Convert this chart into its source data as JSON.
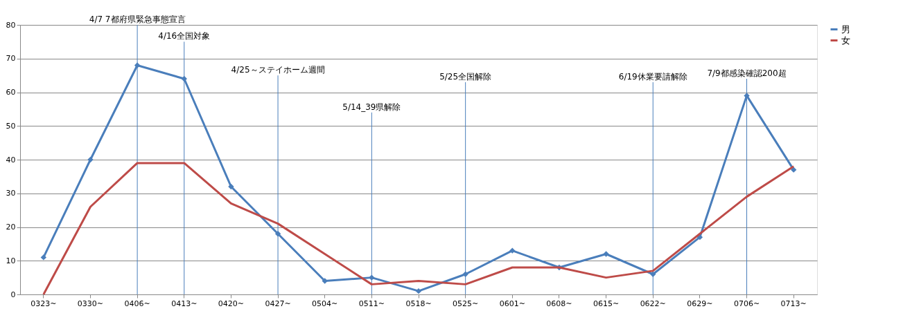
{
  "chart_data": {
    "type": "line",
    "categories": [
      "0323~",
      "0330~",
      "0406~",
      "0413~",
      "0420~",
      "0427~",
      "0504~",
      "0511~",
      "0518~",
      "0525~",
      "0601~",
      "0608~",
      "0615~",
      "0622~",
      "0629~",
      "0706~",
      "0713~"
    ],
    "series": [
      {
        "name": "男",
        "color": "#4a7ebb",
        "marker": "diamond",
        "values": [
          11,
          40,
          68,
          64,
          32,
          18,
          4,
          5,
          1,
          6,
          13,
          8,
          12,
          6,
          17,
          59,
          37
        ]
      },
      {
        "name": "女",
        "color": "#be4b48",
        "marker": "none",
        "values": [
          0,
          26,
          39,
          39,
          27,
          21,
          12,
          3,
          4,
          3,
          8,
          8,
          5,
          7,
          18,
          29,
          38
        ]
      }
    ],
    "ylim": [
      0,
      80
    ],
    "yticks": [
      0,
      10,
      20,
      30,
      40,
      50,
      60,
      70,
      80
    ],
    "grid": "y",
    "legend": "right",
    "line_style": "solid",
    "ref_lines": [
      {
        "axis": "x",
        "value": "0406~",
        "color": "#4a7ebb"
      },
      {
        "axis": "x",
        "value": "0413~",
        "color": "#4a7ebb"
      },
      {
        "axis": "x",
        "value": "0427~",
        "color": "#4a7ebb"
      },
      {
        "axis": "x",
        "value": "0511~",
        "color": "#4a7ebb"
      },
      {
        "axis": "x",
        "value": "0525~",
        "color": "#4a7ebb"
      },
      {
        "axis": "x",
        "value": "0622~",
        "color": "#4a7ebb"
      },
      {
        "axis": "x",
        "value": "0706~",
        "color": "#4a7ebb"
      }
    ],
    "annotations": [
      {
        "text": "4/7  7都府県緊急事態宣言",
        "x": "0406~",
        "y": 80
      },
      {
        "text": "4/16全国対象",
        "x": "0413~",
        "y": 75
      },
      {
        "text": "4/25～ステイホーム週間",
        "x": "0427~",
        "y": 65
      },
      {
        "text": "5/14_39県解除",
        "x": "0511~",
        "y": 54
      },
      {
        "text": "5/25全国解除",
        "x": "0525~",
        "y": 63
      },
      {
        "text": "6/19休業要請解除",
        "x": "0622~",
        "y": 63
      },
      {
        "text": "7/9都感染確認200超",
        "x": "0706~",
        "y": 64
      }
    ]
  }
}
